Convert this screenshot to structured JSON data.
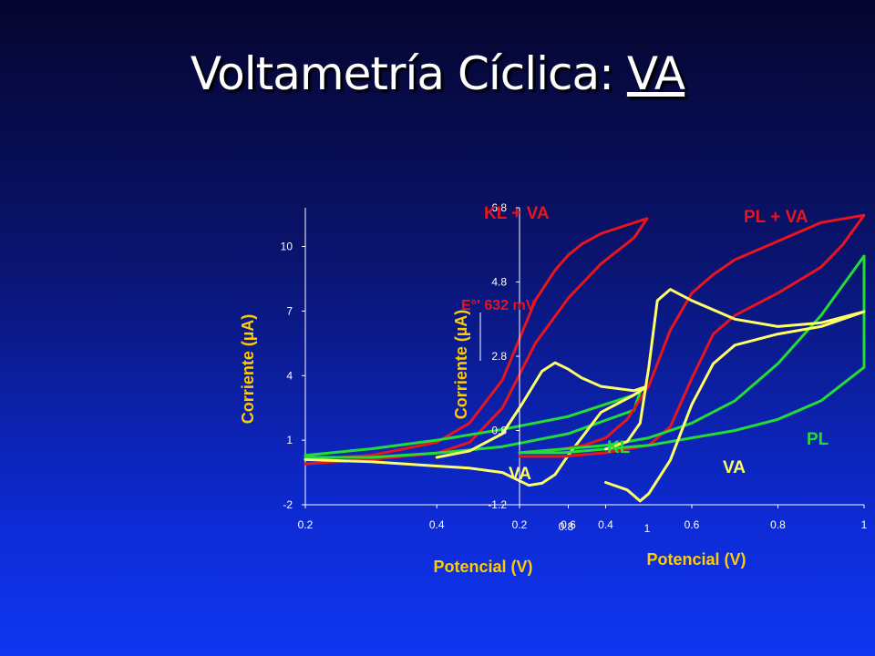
{
  "slide": {
    "title_main": "Voltametría Cíclica: ",
    "title_underlined": "VA"
  },
  "colors": {
    "axis_title": "#ffcc00",
    "red_series": "#e8141e",
    "yellow_series": "#ffff66",
    "green_series": "#22dd33",
    "axis": "#ffffff"
  },
  "chart_data": [
    {
      "type": "line",
      "panel": "left",
      "xlabel": "Potencial (V)",
      "ylabel": "Corriente (µA)",
      "x_ticks": [
        "0.2",
        "0.4",
        "0.6"
      ],
      "y_ticks": [
        "-2",
        "1",
        "4",
        "7",
        "10"
      ],
      "xlim": [
        0.2,
        0.72
      ],
      "ylim": [
        -2,
        11.8
      ],
      "series": [
        {
          "name": "KL + VA",
          "color": "#e8141e",
          "x": [
            0.2,
            0.3,
            0.4,
            0.45,
            0.5,
            0.55,
            0.58,
            0.6,
            0.62,
            0.65,
            0.7,
            0.72,
            0.7,
            0.65,
            0.6,
            0.55,
            0.5,
            0.45,
            0.4,
            0.3,
            0.2
          ],
          "y": [
            0.1,
            0.3,
            0.9,
            1.8,
            3.8,
            7.5,
            8.9,
            9.6,
            10.1,
            10.6,
            11.1,
            11.3,
            10.4,
            9.2,
            7.6,
            5.5,
            2.5,
            0.9,
            0.4,
            0.1,
            -0.1
          ]
        },
        {
          "name": "KL",
          "color": "#22dd33",
          "x": [
            0.2,
            0.3,
            0.4,
            0.5,
            0.6,
            0.65,
            0.7,
            0.71,
            0.7,
            0.6,
            0.5,
            0.4,
            0.3,
            0.2
          ],
          "y": [
            0.3,
            0.6,
            1.0,
            1.5,
            2.1,
            2.6,
            3.1,
            3.3,
            2.4,
            1.3,
            0.7,
            0.4,
            0.2,
            0.2
          ]
        },
        {
          "name": "VA",
          "color": "#ffff66",
          "x": [
            0.4,
            0.45,
            0.5,
            0.53,
            0.56,
            0.58,
            0.6,
            0.62,
            0.65,
            0.7,
            0.72,
            0.7,
            0.65,
            0.6,
            0.58,
            0.56,
            0.54,
            0.52,
            0.5,
            0.45,
            0.4,
            0.3,
            0.2
          ],
          "y": [
            0.2,
            0.5,
            1.3,
            2.7,
            4.2,
            4.6,
            4.3,
            3.9,
            3.5,
            3.3,
            3.5,
            3.1,
            2.3,
            0.3,
            -0.6,
            -1.0,
            -1.1,
            -0.8,
            -0.5,
            -0.3,
            -0.2,
            0.0,
            0.1
          ]
        }
      ],
      "annotations": [
        "KL + VA",
        "VA",
        "KL"
      ]
    },
    {
      "type": "line",
      "panel": "right",
      "xlabel": "Potencial (V)",
      "ylabel": "Corriente (µA)",
      "x_ticks": [
        "0.2",
        "0.4",
        "0.6",
        "0.8",
        "1"
      ],
      "y_ticks": [
        "-1.2",
        "0.8",
        "2.8",
        "4.8",
        "6.8"
      ],
      "extra_x_ticks": [
        "0.8",
        "1"
      ],
      "xlim": [
        0.2,
        1.0
      ],
      "ylim": [
        -1.2,
        6.8
      ],
      "series": [
        {
          "name": "PL + VA",
          "color": "#e8141e",
          "x": [
            0.2,
            0.3,
            0.35,
            0.4,
            0.45,
            0.5,
            0.55,
            0.6,
            0.65,
            0.7,
            0.8,
            0.9,
            1.0,
            0.95,
            0.9,
            0.8,
            0.7,
            0.65,
            0.6,
            0.55,
            0.5,
            0.4,
            0.3,
            0.2
          ],
          "y": [
            0.2,
            0.3,
            0.4,
            0.6,
            1.1,
            2.0,
            3.5,
            4.5,
            5.0,
            5.4,
            5.9,
            6.4,
            6.6,
            5.8,
            5.2,
            4.5,
            3.9,
            3.4,
            2.2,
            0.9,
            0.4,
            0.2,
            0.1,
            0.1
          ]
        },
        {
          "name": "PL",
          "color": "#22dd33",
          "x": [
            0.2,
            0.3,
            0.4,
            0.5,
            0.6,
            0.7,
            0.8,
            0.9,
            1.0,
            1.0,
            0.9,
            0.8,
            0.7,
            0.6,
            0.5,
            0.4,
            0.3,
            0.2
          ],
          "y": [
            0.2,
            0.2,
            0.3,
            0.4,
            0.6,
            0.8,
            1.1,
            1.6,
            2.5,
            5.5,
            3.9,
            2.6,
            1.6,
            1.0,
            0.6,
            0.4,
            0.3,
            0.2
          ]
        },
        {
          "name": "VA",
          "color": "#ffff66",
          "x": [
            0.4,
            0.45,
            0.48,
            0.5,
            0.52,
            0.55,
            0.6,
            0.7,
            0.8,
            0.9,
            1.0,
            0.95,
            0.9,
            0.8,
            0.7,
            0.65,
            0.6,
            0.55,
            0.5,
            0.48,
            0.45,
            0.4
          ],
          "y": [
            0.3,
            0.5,
            1.0,
            2.5,
            4.3,
            4.6,
            4.3,
            3.8,
            3.6,
            3.7,
            4.0,
            3.8,
            3.6,
            3.4,
            3.1,
            2.6,
            1.5,
            0.0,
            -0.9,
            -1.1,
            -0.8,
            -0.6
          ]
        }
      ],
      "annotations": [
        "PL + VA",
        "PL",
        "VA"
      ],
      "reference_note": "E°' 632 mV"
    }
  ]
}
